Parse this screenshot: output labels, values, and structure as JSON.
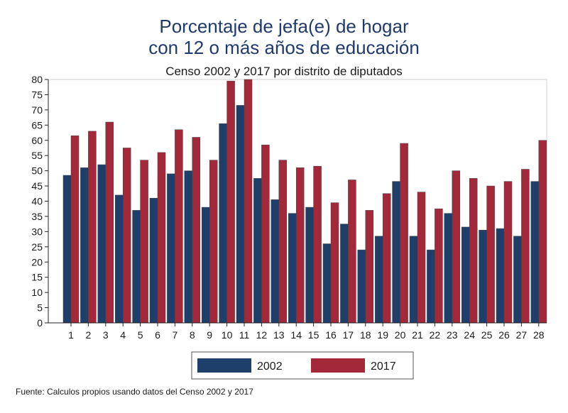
{
  "chart_data": {
    "type": "bar",
    "title_lines": [
      "Porcentaje de jefa(e) de hogar",
      "con 12 o más años de educación"
    ],
    "subtitle": "Censo 2002 y 2017 por distrito de diputados",
    "categories": [
      "1",
      "2",
      "3",
      "4",
      "5",
      "6",
      "7",
      "8",
      "9",
      "10",
      "11",
      "12",
      "13",
      "14",
      "15",
      "16",
      "17",
      "18",
      "19",
      "20",
      "21",
      "22",
      "23",
      "24",
      "25",
      "26",
      "27",
      "28"
    ],
    "series": [
      {
        "name": "2002",
        "color": "#1f3f6b",
        "values": [
          48.5,
          51,
          52,
          42,
          37,
          41,
          49,
          50,
          38,
          65.5,
          71.5,
          47.5,
          40.5,
          36,
          38,
          26,
          32.5,
          24,
          28.5,
          46.5,
          28.5,
          24,
          36,
          31.5,
          30.5,
          31,
          28.5,
          46.5
        ]
      },
      {
        "name": "2017",
        "color": "#a3283a",
        "values": [
          61.5,
          63,
          66,
          57.5,
          53.5,
          56,
          63.5,
          61,
          53.5,
          79.5,
          80,
          58.5,
          53.5,
          51,
          51.5,
          39.5,
          47,
          37,
          42.5,
          59,
          43,
          37.5,
          50,
          47.5,
          45,
          46.5,
          50.5,
          60
        ]
      }
    ],
    "ylim": [
      0,
      80
    ],
    "yticks": [
      0,
      5,
      10,
      15,
      20,
      25,
      30,
      35,
      40,
      45,
      50,
      55,
      60,
      65,
      70,
      75,
      80
    ],
    "legend_placement": "bottom",
    "grid": false,
    "source": "Fuente: Calculos propios usando datos del Censo 2002 y 2017"
  }
}
